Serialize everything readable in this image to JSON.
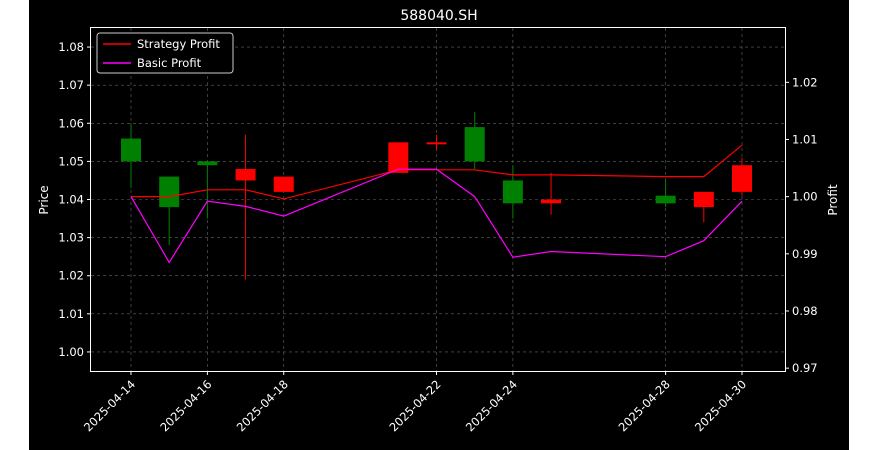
{
  "chart_data": {
    "type": "candlestick",
    "title": "588040.SH",
    "xlabel": "",
    "ylabel_left": "Price",
    "ylabel_right": "Profit",
    "ylim_left": [
      0.995,
      1.085
    ],
    "ylim_right": [
      0.9695,
      1.0295
    ],
    "yticks_left": [
      "1.00",
      "1.01",
      "1.02",
      "1.03",
      "1.04",
      "1.05",
      "1.06",
      "1.07",
      "1.08"
    ],
    "yticks_right": [
      "0.97",
      "0.98",
      "0.99",
      "1.00",
      "1.01",
      "1.02"
    ],
    "xticks": [
      "2025-04-14",
      "2025-04-16",
      "2025-04-18",
      "2025-04-22",
      "2025-04-24",
      "2025-04-28",
      "2025-04-30"
    ],
    "grid": true,
    "legend_position": "top-left",
    "colors": {
      "up": "#ff0000",
      "down": "#008000",
      "strategy": "#ff0000",
      "basic": "#ff00ff",
      "background": "#000000"
    },
    "candles": [
      {
        "date": "2025-04-14",
        "open": 1.056,
        "close": 1.05,
        "high": 1.06,
        "low": 1.043
      },
      {
        "date": "2025-04-15",
        "open": 1.046,
        "close": 1.038,
        "high": 1.046,
        "low": 1.028
      },
      {
        "date": "2025-04-16",
        "open": 1.05,
        "close": 1.049,
        "high": 1.05,
        "low": 1.035
      },
      {
        "date": "2025-04-17",
        "open": 1.045,
        "close": 1.048,
        "high": 1.057,
        "low": 1.019
      },
      {
        "date": "2025-04-18",
        "open": 1.042,
        "close": 1.046,
        "high": 1.046,
        "low": 1.042
      },
      {
        "date": "2025-04-21",
        "open": 1.047,
        "close": 1.055,
        "high": 1.055,
        "low": 1.047
      },
      {
        "date": "2025-04-22",
        "open": 1.055,
        "close": 1.055,
        "high": 1.057,
        "low": 1.053
      },
      {
        "date": "2025-04-23",
        "open": 1.059,
        "close": 1.05,
        "high": 1.063,
        "low": 1.048
      },
      {
        "date": "2025-04-24",
        "open": 1.045,
        "close": 1.039,
        "high": 1.049,
        "low": 1.035
      },
      {
        "date": "2025-04-25",
        "open": 1.039,
        "close": 1.04,
        "high": 1.047,
        "low": 1.036
      },
      {
        "date": "2025-04-28",
        "open": 1.041,
        "close": 1.039,
        "high": 1.045,
        "low": 1.038
      },
      {
        "date": "2025-04-29",
        "open": 1.038,
        "close": 1.042,
        "high": 1.042,
        "low": 1.034
      },
      {
        "date": "2025-04-30",
        "open": 1.042,
        "close": 1.049,
        "high": 1.051,
        "low": 1.041
      }
    ],
    "series": [
      {
        "name": "Strategy Profit",
        "color": "#ff0000",
        "values": [
          1.0,
          1.0,
          1.0012,
          1.0012,
          0.9996,
          1.0047,
          1.0047,
          1.0047,
          1.0038,
          1.0038,
          1.0035,
          1.0035,
          1.009
        ]
      },
      {
        "name": "Basic Profit",
        "color": "#ff00ff",
        "values": [
          1.0,
          0.9885,
          0.9992,
          0.9983,
          0.9966,
          1.0048,
          1.0048,
          1.0,
          0.9894,
          0.9904,
          0.9895,
          0.9923,
          0.9992
        ]
      }
    ]
  }
}
